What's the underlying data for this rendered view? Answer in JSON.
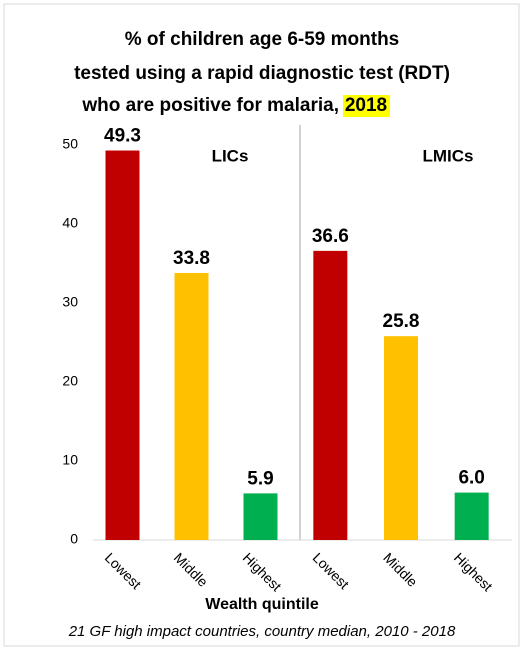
{
  "chart_data": {
    "type": "bar",
    "title_lines": [
      "% of children age 6-59 months",
      "tested using a rapid diagnostic test (RDT)",
      "who are positive for malaria,"
    ],
    "title_highlight": "2018",
    "x_label": "Wealth quintile",
    "footnote": "21 GF high impact countries, country median, 2010 - 2018",
    "ylim": [
      0,
      50
    ],
    "yticks": [
      0,
      10,
      20,
      30,
      40,
      50
    ],
    "panels": [
      {
        "name": "LICs",
        "categories": [
          "Lowest",
          "Middle",
          "Highest"
        ],
        "values": [
          49.3,
          33.8,
          5.9
        ],
        "value_labels": [
          "49.3",
          "33.8",
          "5.9"
        ],
        "colors": [
          "#c00000",
          "#ffc000",
          "#00b050"
        ]
      },
      {
        "name": "LMICs",
        "categories": [
          "Lowest",
          "Middle",
          "Highest"
        ],
        "values": [
          36.6,
          25.8,
          6.0
        ],
        "value_labels": [
          "36.6",
          "25.8",
          "6.0"
        ],
        "colors": [
          "#c00000",
          "#ffc000",
          "#00b050"
        ]
      }
    ]
  }
}
